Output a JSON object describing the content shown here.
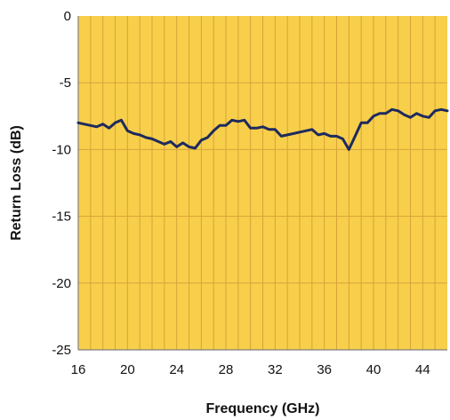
{
  "chart_data": {
    "type": "line",
    "title": "",
    "xlabel": "Frequency (GHz)",
    "ylabel": "Return Loss (dB)",
    "xlim": [
      16,
      46
    ],
    "ylim": [
      -25,
      0
    ],
    "x_ticks": [
      16,
      20,
      24,
      28,
      32,
      36,
      40,
      44
    ],
    "y_ticks": [
      0,
      -5,
      -10,
      -15,
      -20,
      -25
    ],
    "x_tick_labels": [
      "16",
      "20",
      "24",
      "28",
      "32",
      "36",
      "40",
      "44"
    ],
    "y_tick_labels": [
      "0",
      "-5",
      "-10",
      "-15",
      "-20",
      "-25"
    ],
    "grid": true,
    "grid_vertical_step": 1,
    "grid_horizontal_step": 5,
    "legend": "none",
    "colors": {
      "plot_background": "#F7CF4A",
      "grid_line": "#D9A23A",
      "axis_line": "#808080",
      "series_line": "#1E2A5E"
    },
    "series": [
      {
        "x": [
          16,
          16.5,
          17,
          17.5,
          18,
          18.5,
          19,
          19.5,
          20,
          20.5,
          21,
          21.5,
          22,
          22.5,
          23,
          23.5,
          24,
          24.5,
          25,
          25.5,
          26,
          26.5,
          27,
          27.5,
          28,
          28.5,
          29,
          29.5,
          30,
          30.5,
          31,
          31.5,
          32,
          32.5,
          33,
          33.5,
          34,
          34.5,
          35,
          35.5,
          36,
          36.5,
          37,
          37.5,
          38,
          38.5,
          39,
          39.5,
          40,
          40.5,
          41,
          41.5,
          42,
          42.5,
          43,
          43.5,
          44,
          44.5,
          45,
          45.5,
          46
        ],
        "values": [
          -8.0,
          -8.1,
          -8.2,
          -8.3,
          -8.1,
          -8.4,
          -8.0,
          -7.8,
          -8.6,
          -8.8,
          -8.9,
          -9.1,
          -9.2,
          -9.4,
          -9.6,
          -9.4,
          -9.8,
          -9.5,
          -9.8,
          -9.9,
          -9.3,
          -9.1,
          -8.6,
          -8.2,
          -8.2,
          -7.8,
          -7.9,
          -7.8,
          -8.4,
          -8.4,
          -8.3,
          -8.5,
          -8.5,
          -9.0,
          -8.9,
          -8.8,
          -8.7,
          -8.6,
          -8.5,
          -8.9,
          -8.8,
          -9.0,
          -9.0,
          -9.2,
          -10.0,
          -9.0,
          -8.0,
          -8.0,
          -7.5,
          -7.3,
          -7.3,
          -7.0,
          -7.1,
          -7.4,
          -7.6,
          -7.3,
          -7.5,
          -7.6,
          -7.1,
          -7.0,
          -7.1
        ]
      }
    ]
  }
}
